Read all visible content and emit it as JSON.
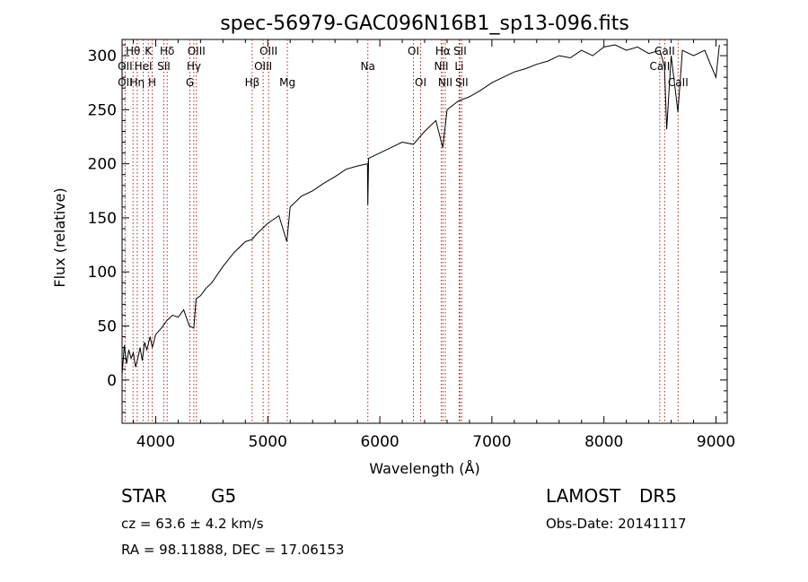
{
  "chart_data": {
    "type": "line",
    "title": "spec-56979-GAC096N16B1_sp13-096.fits",
    "xlabel": "Wavelength (Å)",
    "ylabel": "Flux (relative)",
    "xlim": [
      3700,
      9100
    ],
    "ylim": [
      -40,
      315
    ],
    "xticks": [
      4000,
      5000,
      6000,
      7000,
      8000,
      9000
    ],
    "yticks": [
      0,
      50,
      100,
      150,
      200,
      250,
      300
    ],
    "series": [
      {
        "x": [
          3700,
          3720,
          3740,
          3760,
          3780,
          3800,
          3820,
          3840,
          3860,
          3880,
          3900,
          3920,
          3950,
          3970,
          4000,
          4050,
          4100,
          4150,
          4200,
          4250,
          4300,
          4340,
          4360,
          4400,
          4450,
          4500,
          4600,
          4700,
          4800,
          4861,
          4900,
          5000,
          5100,
          5170,
          5200,
          5300,
          5400,
          5500,
          5600,
          5700,
          5800,
          5890,
          5893,
          5900,
          6000,
          6100,
          6200,
          6300,
          6400,
          6500,
          6562,
          6600,
          6700,
          6800,
          6900,
          7000,
          7100,
          7200,
          7300,
          7400,
          7500,
          7600,
          7700,
          7800,
          7900,
          8000,
          8100,
          8200,
          8300,
          8400,
          8500,
          8540,
          8560,
          8600,
          8660,
          8700,
          8800,
          8900,
          8950,
          9000,
          9030
        ],
        "y": [
          5,
          32,
          15,
          28,
          20,
          25,
          12,
          20,
          30,
          18,
          35,
          28,
          40,
          30,
          42,
          48,
          55,
          60,
          58,
          65,
          50,
          48,
          75,
          78,
          85,
          90,
          105,
          118,
          128,
          130,
          135,
          145,
          152,
          128,
          160,
          170,
          175,
          182,
          188,
          195,
          198,
          200,
          162,
          205,
          210,
          215,
          220,
          218,
          230,
          240,
          215,
          250,
          258,
          262,
          268,
          275,
          280,
          285,
          288,
          292,
          295,
          300,
          298,
          305,
          300,
          308,
          310,
          305,
          308,
          302,
          305,
          290,
          232,
          300,
          248,
          305,
          300,
          305,
          292,
          280,
          310
        ]
      }
    ],
    "lines": [
      {
        "label": "Hθ",
        "wl": 3798,
        "row": 0
      },
      {
        "label": "OII",
        "wl": 3727,
        "row": 1
      },
      {
        "label": "OII",
        "wl": 3727,
        "row": 2
      },
      {
        "label": "K",
        "wl": 3934,
        "row": 0
      },
      {
        "label": "HeI",
        "wl": 3889,
        "row": 1
      },
      {
        "label": "Hη",
        "wl": 3835,
        "row": 2
      },
      {
        "label": "H",
        "wl": 3969,
        "row": 2
      },
      {
        "label": "Hδ",
        "wl": 4102,
        "row": 0
      },
      {
        "label": "SII",
        "wl": 4072,
        "row": 1
      },
      {
        "label": "OIII",
        "wl": 4363,
        "row": 0
      },
      {
        "label": "Hγ",
        "wl": 4340,
        "row": 1
      },
      {
        "label": "G",
        "wl": 4305,
        "row": 2
      },
      {
        "label": "Hβ",
        "wl": 4861,
        "row": 2
      },
      {
        "label": "OIII",
        "wl": 5007,
        "row": 0
      },
      {
        "label": "OIII",
        "wl": 4959,
        "row": 1
      },
      {
        "label": "Mg",
        "wl": 5175,
        "row": 2
      },
      {
        "label": "Na",
        "wl": 5893,
        "row": 1
      },
      {
        "label": "OI",
        "wl": 6300,
        "row": 0
      },
      {
        "label": "OI",
        "wl": 6364,
        "row": 2
      },
      {
        "label": "Hα",
        "wl": 6563,
        "row": 0
      },
      {
        "label": "SII",
        "wl": 6716,
        "row": 0
      },
      {
        "label": "NII",
        "wl": 6548,
        "row": 1
      },
      {
        "label": "Li",
        "wl": 6708,
        "row": 1
      },
      {
        "label": "NII",
        "wl": 6584,
        "row": 2
      },
      {
        "label": "SII",
        "wl": 6731,
        "row": 2
      },
      {
        "label": "CaII",
        "wl": 8542,
        "row": 0
      },
      {
        "label": "CaII",
        "wl": 8498,
        "row": 1
      },
      {
        "label": "CaII",
        "wl": 8662,
        "row": 2
      }
    ],
    "line_color": "#b22222",
    "legend": "none",
    "grid": false
  },
  "info": {
    "object_class": "STAR",
    "subclass": "G5",
    "survey": "LAMOST",
    "release": "DR5",
    "redshift": "cz = 63.6 ± 4.2 km/s",
    "obs_date": "Obs-Date: 20141117",
    "coords": "RA =  98.11888, DEC =  17.06153"
  }
}
